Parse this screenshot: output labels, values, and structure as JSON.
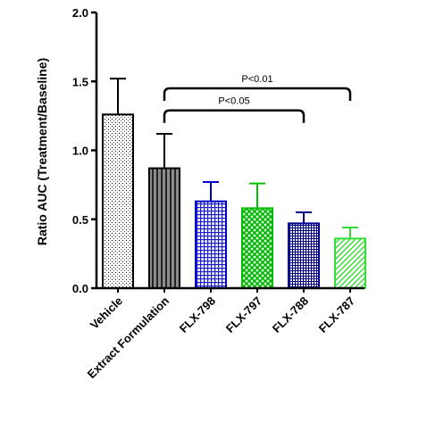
{
  "chart_data": {
    "type": "bar",
    "title": "",
    "xlabel": "",
    "ylabel": "Ratio AUC (Treatment/Baseline)",
    "ylim": [
      0,
      2.0
    ],
    "yticks": [
      "0.0",
      "0.5",
      "1.0",
      "1.5",
      "2.0"
    ],
    "grid": false,
    "categories": [
      "Vehicle",
      "Extract Formulation",
      "FLX-798",
      "FLX-797",
      "FLX-788",
      "FLX-787"
    ],
    "values": [
      1.26,
      0.87,
      0.63,
      0.58,
      0.47,
      0.36
    ],
    "error_upper": [
      0.26,
      0.25,
      0.14,
      0.18,
      0.08,
      0.08
    ],
    "bar_styles": [
      {
        "fill": "dots",
        "color": "#000000",
        "background": "#ffffff"
      },
      {
        "fill": "vertical-stripes",
        "color": "#000000",
        "background": "#8c8c8c"
      },
      {
        "fill": "grid",
        "color": "#0000c8",
        "background": "#ffffff"
      },
      {
        "fill": "crosshatch",
        "color": "#00c000",
        "background": "#ffffff"
      },
      {
        "fill": "fine-grid",
        "color": "#00008c",
        "background": "#ffffff"
      },
      {
        "fill": "diagonal",
        "color": "#33dd33",
        "background": "#ffffff"
      }
    ],
    "annotations": [
      {
        "text": "P<0.01",
        "from": "Extract Formulation",
        "to": "FLX-787",
        "y": 1.45
      },
      {
        "text": "P<0.05",
        "from": "Extract Formulation",
        "to": "FLX-788",
        "y": 1.29
      }
    ]
  }
}
